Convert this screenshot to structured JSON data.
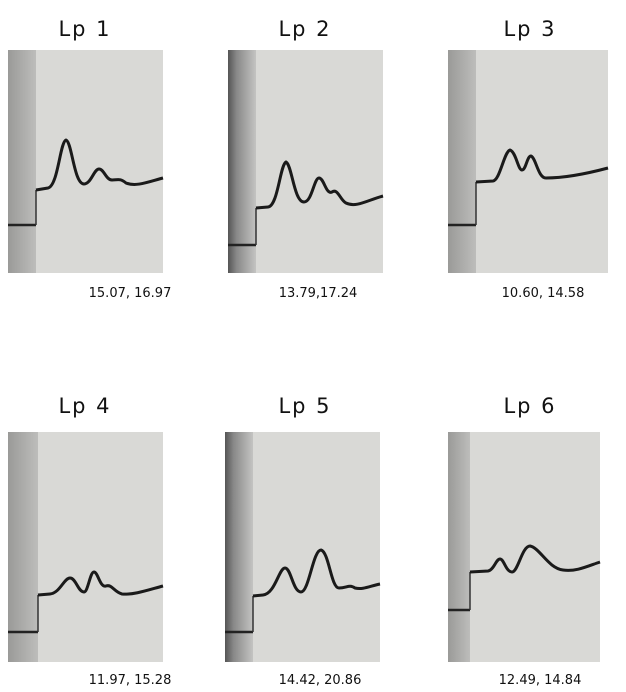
{
  "panels": [
    {
      "label": "Lp 1",
      "caption": "15.07, 16.97"
    },
    {
      "label": "Lp 2",
      "caption": "13.79,17.24"
    },
    {
      "label": "Lp 3",
      "caption": "10.60, 14.58"
    },
    {
      "label": "Lp 4",
      "caption": "11.97, 15.28"
    },
    {
      "label": "Lp 5",
      "caption": "14.42, 20.86"
    },
    {
      "label": "Lp 6",
      "caption": "12.49, 14.84"
    }
  ]
}
